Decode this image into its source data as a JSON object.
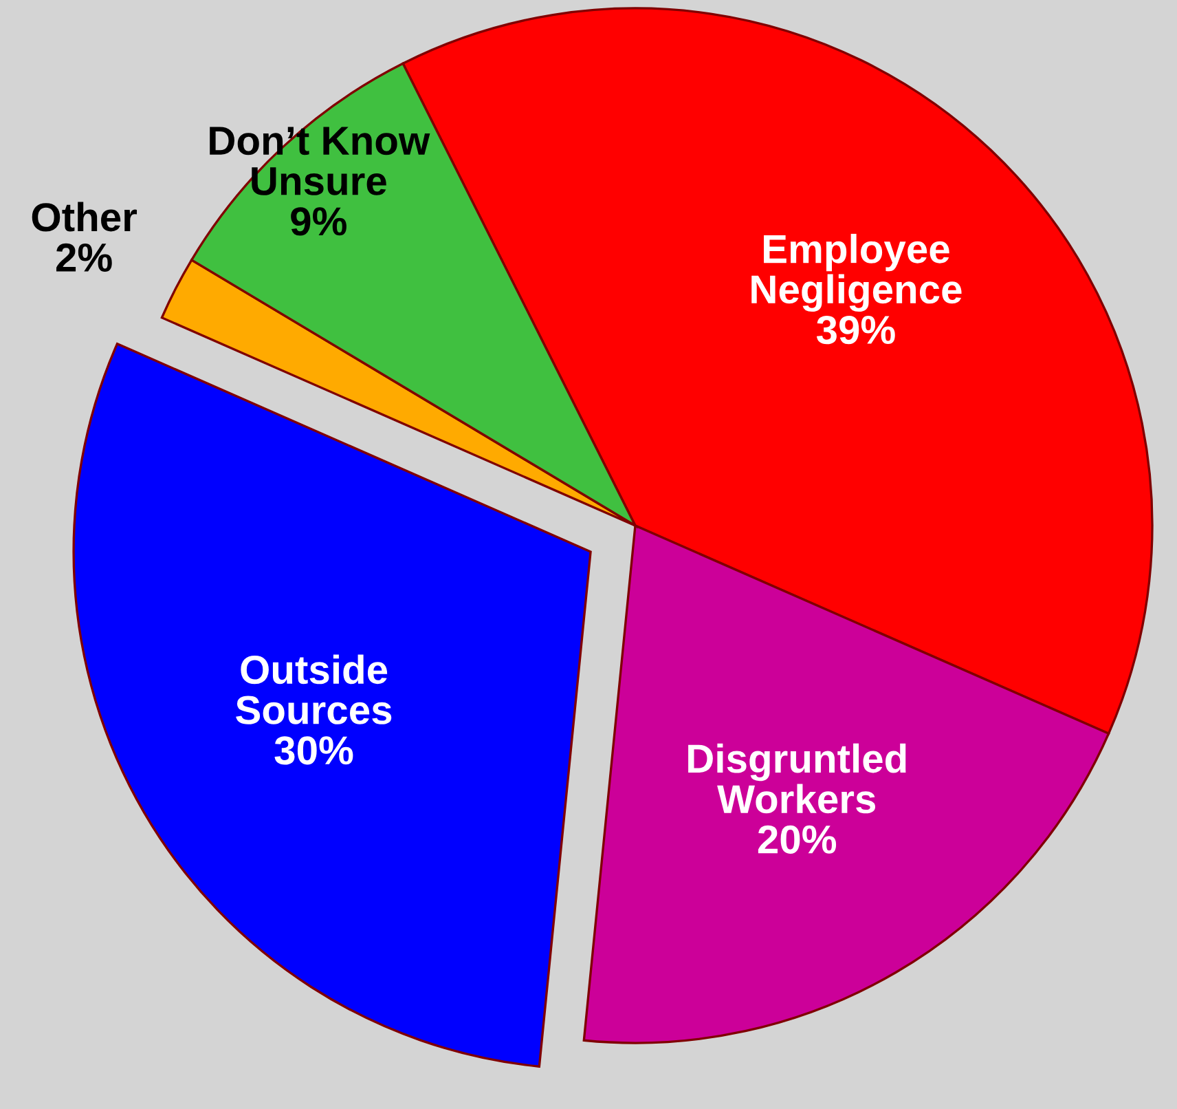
{
  "chart_data": {
    "type": "pie",
    "categories": [
      "Employee\nNegligence",
      "Disgruntled\nWorkers",
      "Outside\nSources",
      "Other",
      "Don’t Know\nUnsure"
    ],
    "values": [
      39,
      20,
      30,
      2,
      9
    ],
    "value_labels": [
      "39%",
      "20%",
      "30%",
      "2%",
      "9%"
    ],
    "colors": [
      "#ff0000",
      "#cc0099",
      "#0000ff",
      "#ffaa00",
      "#40c040"
    ]
  }
}
